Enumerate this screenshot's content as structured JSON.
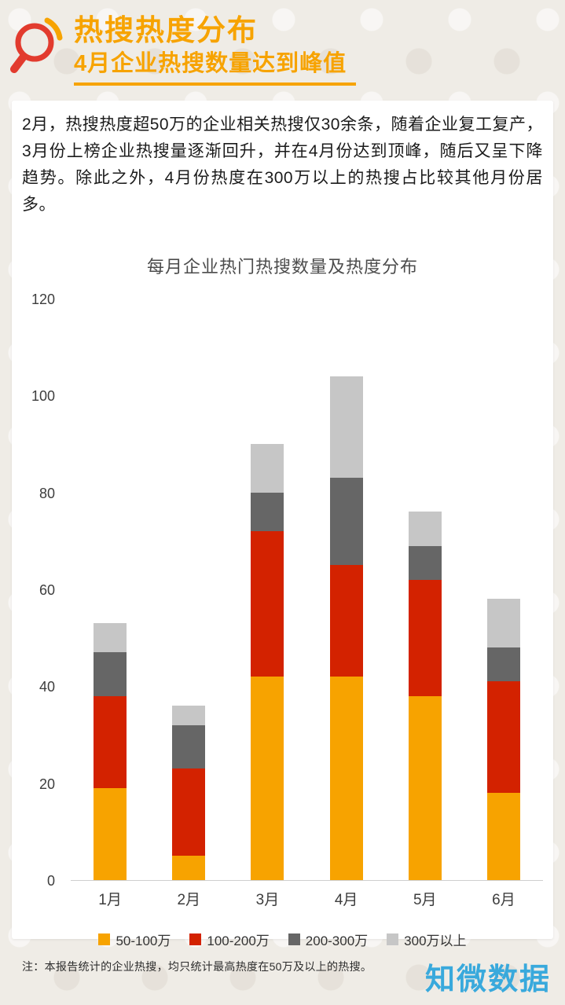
{
  "header": {
    "title": "热搜热度分布",
    "subtitle": "4月企业热搜数量达到峰值"
  },
  "body_paragraph": "2月，热搜热度超50万的企业相关热搜仅30余条，随着企业复工复产，3月份上榜企业热搜量逐渐回升，并在4月份达到顶峰，随后又呈下降趋势。除此之外，4月份热度在300万以上的热搜占比较其他月份居多。",
  "footnote": "注：本报告统计的企业热搜，均只统计最高热度在50万及以上的热搜。",
  "logo_text": "知微数据",
  "icons": {
    "magnifier": "magnifier-icon"
  },
  "colors": {
    "accent_orange": "#f7a300",
    "accent_red": "#d32200",
    "dark_gray": "#666666",
    "light_gray": "#c6c6c6",
    "icon_red": "#e23b2e",
    "logo_blue": "#39a9dc",
    "background": "#efece6",
    "card": "#ffffff"
  },
  "chart_data": {
    "type": "bar",
    "stacked": true,
    "title": "每月企业热门热搜数量及热度分布",
    "xlabel": "",
    "ylabel": "",
    "categories": [
      "1月",
      "2月",
      "3月",
      "4月",
      "5月",
      "6月"
    ],
    "series": [
      {
        "name": "50-100万",
        "color": "#f7a300",
        "values": [
          19,
          5,
          42,
          42,
          38,
          18
        ]
      },
      {
        "name": "100-200万",
        "color": "#d32200",
        "values": [
          19,
          18,
          30,
          23,
          24,
          23
        ]
      },
      {
        "name": "200-300万",
        "color": "#666666",
        "values": [
          9,
          9,
          8,
          18,
          7,
          7
        ]
      },
      {
        "name": "300万以上",
        "color": "#c6c6c6",
        "values": [
          6,
          4,
          10,
          21,
          7,
          10
        ]
      }
    ],
    "totals": [
      53,
      36,
      90,
      104,
      76,
      58
    ],
    "ylim": [
      0,
      120
    ],
    "yticks": [
      0,
      20,
      40,
      60,
      80,
      100,
      120
    ],
    "grid": false,
    "legend_position": "bottom"
  }
}
